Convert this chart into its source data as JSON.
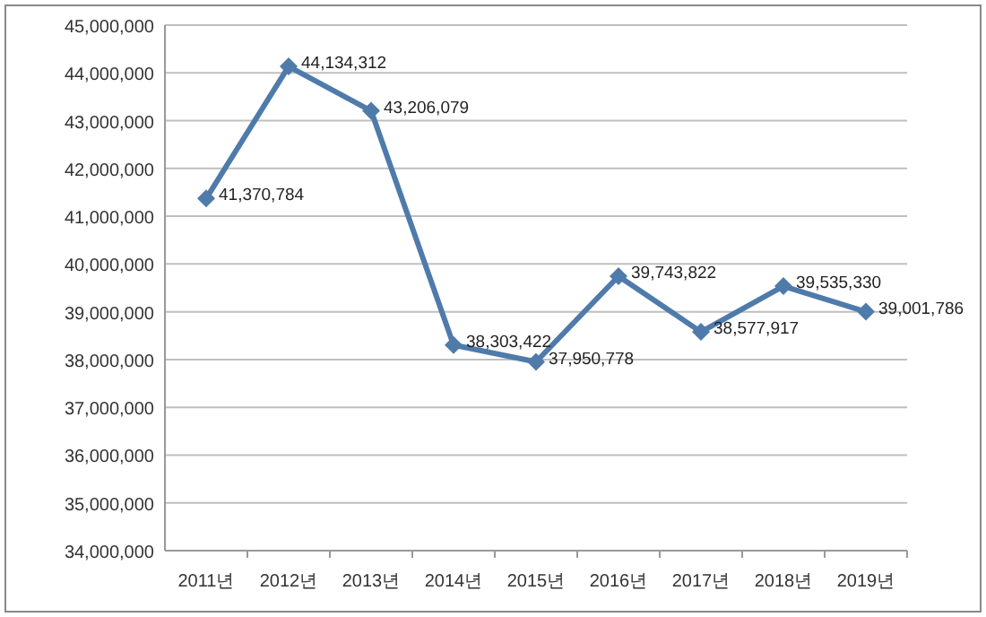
{
  "chart_data": {
    "type": "line",
    "categories": [
      "2011년",
      "2012년",
      "2013년",
      "2014년",
      "2015년",
      "2016년",
      "2017년",
      "2018년",
      "2019년"
    ],
    "values": [
      41370784,
      44134312,
      43206079,
      38303422,
      37950778,
      39743822,
      38577917,
      39535330,
      39001786
    ],
    "value_labels": [
      "41,370,784",
      "44,134,312",
      "43,206,079",
      "38,303,422",
      "37,950,778",
      "39,743,822",
      "38,577,917",
      "39,535,330",
      "39,001,786"
    ],
    "color": "#4f7bab",
    "marker": "diamond",
    "line_style": "solid",
    "grid": "y",
    "ylim": [
      34000000,
      45000000
    ],
    "yticks": [
      {
        "value": 34000000,
        "label": "34,000,000"
      },
      {
        "value": 35000000,
        "label": "35,000,000"
      },
      {
        "value": 36000000,
        "label": "36,000,000"
      },
      {
        "value": 37000000,
        "label": "37,000,000"
      },
      {
        "value": 38000000,
        "label": "38,000,000"
      },
      {
        "value": 39000000,
        "label": "39,000,000"
      },
      {
        "value": 40000000,
        "label": "40,000,000"
      },
      {
        "value": 41000000,
        "label": "41,000,000"
      },
      {
        "value": 42000000,
        "label": "42,000,000"
      },
      {
        "value": 43000000,
        "label": "43,000,000"
      },
      {
        "value": 44000000,
        "label": "44,000,000"
      },
      {
        "value": 45000000,
        "label": "45,000,000"
      }
    ]
  }
}
